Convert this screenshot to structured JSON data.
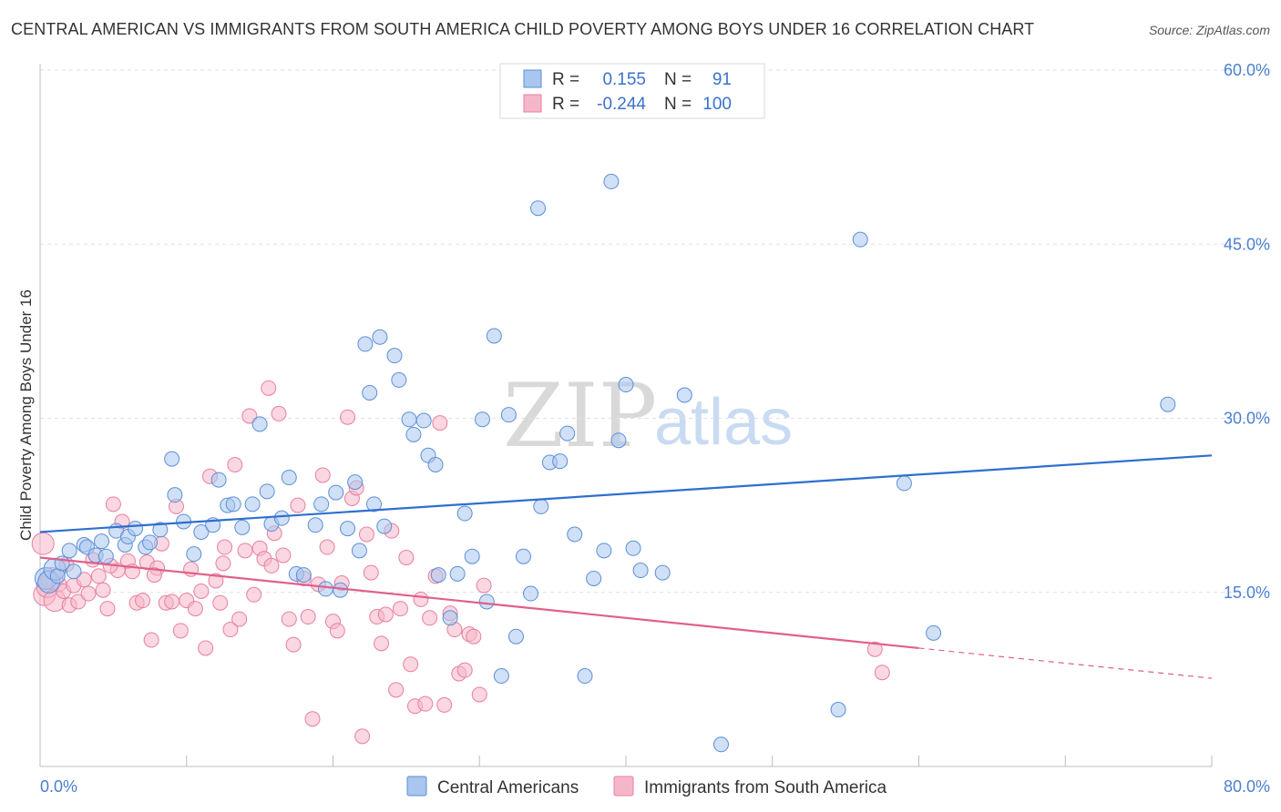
{
  "title": "CENTRAL AMERICAN VS IMMIGRANTS FROM SOUTH AMERICA CHILD POVERTY AMONG BOYS UNDER 16 CORRELATION CHART",
  "source": "Source: ZipAtlas.com",
  "watermark": {
    "zip": "ZIP",
    "atlas": "atlas"
  },
  "colors": {
    "blue_fill": "#a9c6ee",
    "blue_stroke": "#5b8fd8",
    "blue_line": "#2e6fcf",
    "pink_fill": "#f6b6c9",
    "pink_stroke": "#e87fa0",
    "pink_line": "#e0608b",
    "grid": "#e0e0e0",
    "axis_text": "#4a7fd0"
  },
  "legend": {
    "rows": [
      {
        "r_label": "R =",
        "r_value": "0.155",
        "n_label": "N =",
        "n_value": "91",
        "color": "blue"
      },
      {
        "r_label": "R =",
        "r_value": "-0.244",
        "n_label": "N =",
        "n_value": "100",
        "color": "pink"
      }
    ]
  },
  "chart_data": {
    "type": "scatter",
    "title": "CENTRAL AMERICAN VS IMMIGRANTS FROM SOUTH AMERICA CHILD POVERTY AMONG BOYS UNDER 16 CORRELATION CHART",
    "xlabel": "",
    "ylabel": "Child Poverty Among Boys Under 16",
    "xlim": [
      0,
      80
    ],
    "ylim": [
      0,
      60
    ],
    "x_tick_labels": [
      "0.0%",
      "80.0%"
    ],
    "y_ticks": [
      15,
      30,
      45,
      60
    ],
    "y_tick_labels": [
      "15.0%",
      "30.0%",
      "45.0%",
      "60.0%"
    ],
    "grid": true,
    "series": [
      {
        "name": "Central Americans",
        "color": "blue",
        "trend": {
          "x": [
            0,
            80
          ],
          "y": [
            20.2,
            26.8
          ]
        },
        "points": [
          [
            0.4,
            16.2
          ],
          [
            0.6,
            15.9
          ],
          [
            1.0,
            17.0
          ],
          [
            1.2,
            16.4
          ],
          [
            1.5,
            17.5
          ],
          [
            2.0,
            18.6
          ],
          [
            2.3,
            16.8
          ],
          [
            3.0,
            19.1
          ],
          [
            3.2,
            18.9
          ],
          [
            3.8,
            18.2
          ],
          [
            4.2,
            19.4
          ],
          [
            4.5,
            18.1
          ],
          [
            5.2,
            20.3
          ],
          [
            5.8,
            19.1
          ],
          [
            6.0,
            19.8
          ],
          [
            6.5,
            20.5
          ],
          [
            7.2,
            18.9
          ],
          [
            7.5,
            19.3
          ],
          [
            8.2,
            20.4
          ],
          [
            9.0,
            26.5
          ],
          [
            9.2,
            23.4
          ],
          [
            9.8,
            21.1
          ],
          [
            10.5,
            18.3
          ],
          [
            11.0,
            20.2
          ],
          [
            11.8,
            20.8
          ],
          [
            12.2,
            24.7
          ],
          [
            12.8,
            22.5
          ],
          [
            13.2,
            22.6
          ],
          [
            13.8,
            20.6
          ],
          [
            14.5,
            22.6
          ],
          [
            15.0,
            29.5
          ],
          [
            15.5,
            23.7
          ],
          [
            15.8,
            20.9
          ],
          [
            16.5,
            21.4
          ],
          [
            17.0,
            24.9
          ],
          [
            17.5,
            16.6
          ],
          [
            18.0,
            16.5
          ],
          [
            18.8,
            20.8
          ],
          [
            19.2,
            22.6
          ],
          [
            19.5,
            15.3
          ],
          [
            20.2,
            23.6
          ],
          [
            20.5,
            15.2
          ],
          [
            21.0,
            20.5
          ],
          [
            21.5,
            24.5
          ],
          [
            21.8,
            18.6
          ],
          [
            22.2,
            36.4
          ],
          [
            22.5,
            32.2
          ],
          [
            22.8,
            22.6
          ],
          [
            23.2,
            37.0
          ],
          [
            23.5,
            20.7
          ],
          [
            24.2,
            35.4
          ],
          [
            24.5,
            33.3
          ],
          [
            25.2,
            29.9
          ],
          [
            25.5,
            28.6
          ],
          [
            26.2,
            29.8
          ],
          [
            26.5,
            26.8
          ],
          [
            27.0,
            26.0
          ],
          [
            27.2,
            16.5
          ],
          [
            28.0,
            12.8
          ],
          [
            28.5,
            16.6
          ],
          [
            29.0,
            21.8
          ],
          [
            29.5,
            18.1
          ],
          [
            30.2,
            29.9
          ],
          [
            30.5,
            14.2
          ],
          [
            31.0,
            37.1
          ],
          [
            31.5,
            7.8
          ],
          [
            32.0,
            30.3
          ],
          [
            32.5,
            11.2
          ],
          [
            33.0,
            18.1
          ],
          [
            33.5,
            14.9
          ],
          [
            34.0,
            48.1
          ],
          [
            34.2,
            22.4
          ],
          [
            34.8,
            26.2
          ],
          [
            35.5,
            26.3
          ],
          [
            36.0,
            28.7
          ],
          [
            36.5,
            20.0
          ],
          [
            37.2,
            7.8
          ],
          [
            37.8,
            16.2
          ],
          [
            38.5,
            18.6
          ],
          [
            39.0,
            50.4
          ],
          [
            39.5,
            28.1
          ],
          [
            40.0,
            32.9
          ],
          [
            40.5,
            18.8
          ],
          [
            41.0,
            16.9
          ],
          [
            42.5,
            16.7
          ],
          [
            44.0,
            32.0
          ],
          [
            46.5,
            1.9
          ],
          [
            54.5,
            4.9
          ],
          [
            56.0,
            45.4
          ],
          [
            59.0,
            24.4
          ],
          [
            61.0,
            11.5
          ],
          [
            77.0,
            31.2
          ]
        ]
      },
      {
        "name": "Immigrants from South America",
        "color": "pink",
        "trend": {
          "x": [
            0,
            60
          ],
          "y": [
            18.0,
            10.2
          ]
        },
        "trend_dashed": {
          "x": [
            60,
            80
          ],
          "y": [
            10.2,
            7.6
          ]
        },
        "points": [
          [
            0.3,
            14.8
          ],
          [
            0.5,
            15.5
          ],
          [
            0.8,
            16.2
          ],
          [
            1.0,
            14.3
          ],
          [
            1.3,
            15.7
          ],
          [
            1.6,
            15.1
          ],
          [
            2.0,
            13.9
          ],
          [
            2.3,
            15.6
          ],
          [
            2.6,
            14.2
          ],
          [
            3.0,
            16.1
          ],
          [
            3.3,
            14.9
          ],
          [
            3.6,
            17.8
          ],
          [
            4.0,
            16.4
          ],
          [
            4.3,
            15.2
          ],
          [
            4.6,
            13.6
          ],
          [
            5.0,
            22.6
          ],
          [
            5.3,
            16.9
          ],
          [
            5.6,
            21.1
          ],
          [
            6.0,
            17.7
          ],
          [
            6.3,
            16.8
          ],
          [
            6.6,
            14.1
          ],
          [
            7.0,
            14.3
          ],
          [
            7.3,
            17.6
          ],
          [
            7.6,
            10.9
          ],
          [
            8.0,
            17.1
          ],
          [
            8.3,
            19.2
          ],
          [
            8.6,
            14.1
          ],
          [
            9.0,
            14.2
          ],
          [
            9.3,
            22.4
          ],
          [
            9.6,
            11.7
          ],
          [
            10.0,
            14.3
          ],
          [
            10.3,
            17.0
          ],
          [
            10.6,
            13.6
          ],
          [
            11.0,
            15.1
          ],
          [
            11.3,
            10.2
          ],
          [
            11.6,
            25.0
          ],
          [
            12.0,
            16.0
          ],
          [
            12.3,
            14.1
          ],
          [
            12.6,
            18.9
          ],
          [
            13.0,
            11.8
          ],
          [
            13.3,
            26.0
          ],
          [
            13.6,
            12.7
          ],
          [
            14.0,
            18.6
          ],
          [
            14.3,
            30.2
          ],
          [
            14.6,
            14.8
          ],
          [
            15.0,
            18.8
          ],
          [
            15.3,
            17.9
          ],
          [
            15.6,
            32.6
          ],
          [
            16.0,
            20.1
          ],
          [
            16.3,
            30.4
          ],
          [
            16.6,
            18.2
          ],
          [
            17.0,
            12.7
          ],
          [
            17.3,
            10.5
          ],
          [
            17.6,
            22.5
          ],
          [
            18.0,
            16.2
          ],
          [
            18.3,
            12.9
          ],
          [
            18.6,
            4.1
          ],
          [
            19.0,
            15.7
          ],
          [
            19.3,
            25.1
          ],
          [
            19.6,
            18.9
          ],
          [
            20.0,
            12.5
          ],
          [
            20.3,
            11.7
          ],
          [
            20.6,
            15.8
          ],
          [
            21.0,
            30.1
          ],
          [
            21.3,
            23.1
          ],
          [
            21.6,
            24.0
          ],
          [
            22.0,
            2.6
          ],
          [
            22.3,
            20.0
          ],
          [
            22.6,
            16.7
          ],
          [
            23.0,
            12.9
          ],
          [
            23.3,
            10.6
          ],
          [
            23.6,
            13.1
          ],
          [
            24.0,
            20.3
          ],
          [
            24.3,
            6.6
          ],
          [
            24.6,
            13.6
          ],
          [
            25.0,
            18.0
          ],
          [
            25.3,
            8.8
          ],
          [
            25.6,
            5.2
          ],
          [
            26.0,
            14.4
          ],
          [
            26.3,
            5.4
          ],
          [
            26.6,
            12.8
          ],
          [
            27.0,
            16.4
          ],
          [
            27.3,
            29.6
          ],
          [
            27.6,
            5.3
          ],
          [
            28.0,
            13.2
          ],
          [
            28.3,
            11.8
          ],
          [
            28.6,
            8.0
          ],
          [
            29.0,
            8.3
          ],
          [
            29.3,
            11.4
          ],
          [
            29.6,
            11.2
          ],
          [
            30.0,
            6.2
          ],
          [
            30.3,
            15.6
          ],
          [
            57.0,
            10.1
          ],
          [
            57.5,
            8.1
          ],
          [
            0.2,
            19.2
          ],
          [
            1.8,
            17.4
          ],
          [
            4.8,
            17.3
          ],
          [
            7.8,
            16.5
          ],
          [
            12.5,
            17.5
          ],
          [
            15.8,
            17.3
          ]
        ]
      }
    ]
  },
  "bottom_legend": {
    "items": [
      {
        "label": "Central Americans",
        "color": "blue"
      },
      {
        "label": "Immigrants from South America",
        "color": "pink"
      }
    ]
  }
}
